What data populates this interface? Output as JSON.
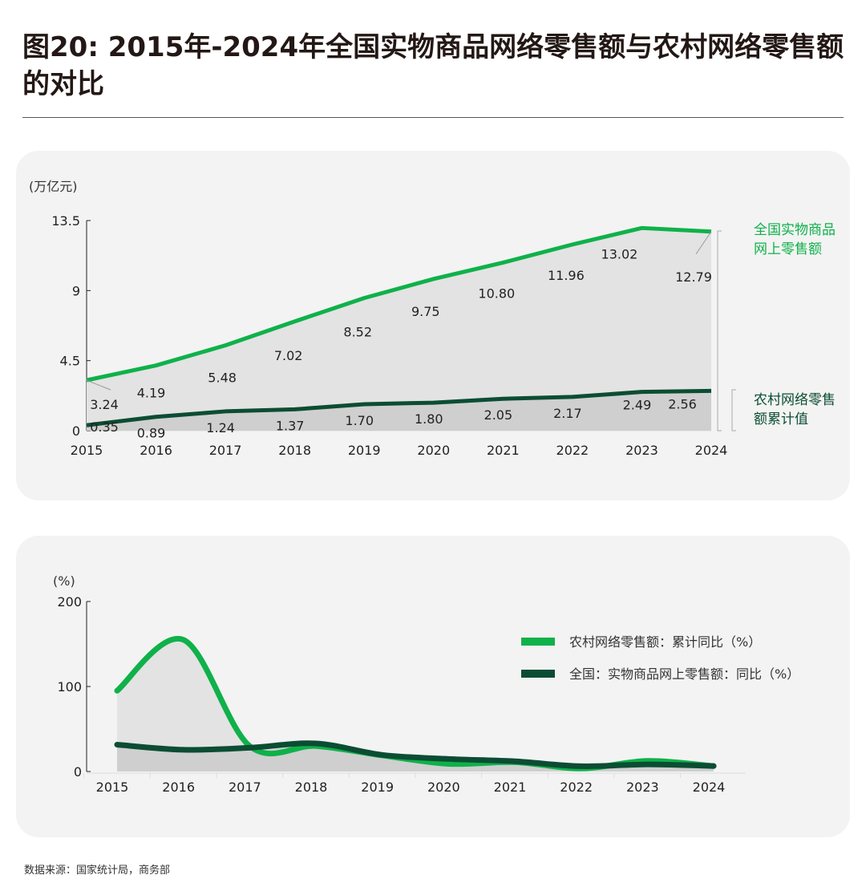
{
  "title": "图20: 2015年-2024年全国实物商品网络零售额与农村网络零售额的对比",
  "source": "数据来源：国家统计局，商务部",
  "colors": {
    "light_green": "#0fb14a",
    "dark_green": "#0b4d33",
    "area_light": "#e3e3e3",
    "area_dark": "#cfcfcf"
  },
  "chart_data": [
    {
      "type": "area",
      "unit": "(万亿元)",
      "categories": [
        "2015",
        "2016",
        "2017",
        "2018",
        "2019",
        "2020",
        "2021",
        "2022",
        "2023",
        "2024"
      ],
      "ylim": [
        0,
        13.5
      ],
      "yticks": [
        "0",
        "4.5",
        "9",
        "13.5"
      ],
      "legend": "right",
      "series": [
        {
          "name": "全国实物商品网上零售额",
          "values": [
            3.24,
            4.19,
            5.48,
            7.02,
            8.52,
            9.75,
            10.8,
            11.96,
            13.02,
            12.79
          ],
          "labels": [
            "3.24",
            "4.19",
            "5.48",
            "7.02",
            "8.52",
            "9.75",
            "10.80",
            "11.96",
            "13.02",
            "12.79"
          ]
        },
        {
          "name": "农村网络零售额累计值",
          "values": [
            0.35,
            0.89,
            1.24,
            1.37,
            1.7,
            1.8,
            2.05,
            2.17,
            2.49,
            2.56
          ],
          "labels": [
            "0.35",
            "0.89",
            "1.24",
            "1.37",
            "1.70",
            "1.80",
            "2.05",
            "2.17",
            "2.49",
            "2.56"
          ]
        }
      ]
    },
    {
      "type": "area",
      "unit": "(%)",
      "categories": [
        "2015",
        "2016",
        "2017",
        "2018",
        "2019",
        "2020",
        "2021",
        "2022",
        "2023",
        "2024"
      ],
      "ylim": [
        0,
        200
      ],
      "yticks": [
        "0",
        "100",
        "200"
      ],
      "legend": "right",
      "series": [
        {
          "name": "农村网络零售额：累计同比（%）",
          "values": [
            95,
            155,
            30,
            30,
            19,
            9,
            11,
            3.6,
            12.5,
            6.4
          ]
        },
        {
          "name": "全国：实物商品网上零售额：同比（%）",
          "values": [
            31.6,
            25.6,
            28,
            33,
            19.5,
            14.8,
            12,
            6.2,
            8.4,
            6.5
          ]
        }
      ]
    }
  ]
}
